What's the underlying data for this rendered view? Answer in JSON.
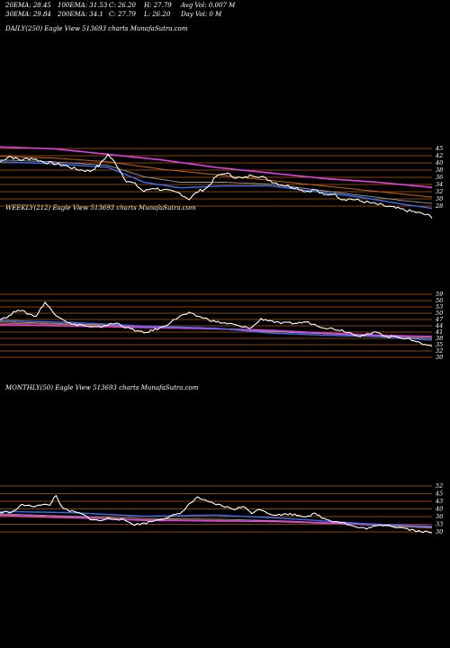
{
  "header": {
    "r1c1": "20EMA: 28.45",
    "r1c2": "100EMA: 31.53",
    "r1c3": "C: 26.20",
    "r1c4": "H: 27.79",
    "r1c5": "Avg Vol: 0.007 M",
    "r2c1": "30EMA: 29.84",
    "r2c2": "200EMA: 34.1",
    "r2c3": "C: 27.79",
    "r2c4": "L: 26.20",
    "r2c5": "Day Vol: 0  M"
  },
  "colors": {
    "background": "#000000",
    "price": "#ffffff",
    "ema_blue": "#3a6df0",
    "ema_pink": "#e040e0",
    "ema_orange": "#c86414",
    "ema_gray": "#9a9a9a",
    "level_line": "#b35a12"
  },
  "chart_data": [
    {
      "type": "line",
      "title": "DAILY(250) Eagle  View  513693 charts MunafaSutra.com",
      "ylim": [
        24,
        47
      ],
      "y_ticks": [
        "45",
        "42",
        "40",
        "38",
        "36",
        "34",
        "32",
        "30",
        "28"
      ],
      "level_lines": [
        45,
        42,
        40,
        38,
        36,
        34,
        32,
        30,
        28
      ],
      "series": [
        {
          "role": "price",
          "points_count": 250,
          "keypoints": [
            [
              0,
              41
            ],
            [
              10,
              42.5
            ],
            [
              22,
              41.5
            ],
            [
              35,
              42
            ],
            [
              48,
              41
            ],
            [
              60,
              40.5
            ],
            [
              72,
              40
            ],
            [
              85,
              39
            ],
            [
              100,
              38.5
            ],
            [
              110,
              40
            ],
            [
              120,
              43
            ],
            [
              130,
              40
            ],
            [
              140,
              36
            ],
            [
              150,
              35
            ],
            [
              160,
              33
            ],
            [
              170,
              34
            ],
            [
              180,
              33.5
            ],
            [
              190,
              33
            ],
            [
              200,
              32.5
            ],
            [
              210,
              31
            ],
            [
              220,
              33
            ],
            [
              230,
              34
            ],
            [
              240,
              37
            ],
            [
              250,
              38
            ],
            [
              260,
              37
            ],
            [
              270,
              36.5
            ],
            [
              280,
              37.5
            ],
            [
              290,
              37
            ],
            [
              300,
              36
            ],
            [
              310,
              35
            ],
            [
              320,
              34.5
            ],
            [
              330,
              34
            ],
            [
              340,
              33
            ],
            [
              350,
              33.5
            ],
            [
              360,
              32
            ],
            [
              370,
              32.5
            ],
            [
              380,
              31
            ],
            [
              390,
              31
            ],
            [
              400,
              30.5
            ],
            [
              410,
              30
            ],
            [
              420,
              29.5
            ],
            [
              430,
              29
            ],
            [
              440,
              28.5
            ],
            [
              450,
              28
            ],
            [
              460,
              27.5
            ],
            [
              470,
              27
            ],
            [
              480,
              26.2
            ]
          ]
        },
        {
          "role": "ema_blue",
          "keypoints": [
            [
              0,
              41
            ],
            [
              60,
              40.5
            ],
            [
              120,
              39.5
            ],
            [
              160,
              35.5
            ],
            [
              200,
              34
            ],
            [
              250,
              34.5
            ],
            [
              300,
              34.5
            ],
            [
              350,
              33
            ],
            [
              400,
              31.5
            ],
            [
              450,
              29.5
            ],
            [
              480,
              28.5
            ]
          ]
        },
        {
          "role": "ema_gray",
          "keypoints": [
            [
              0,
              41.5
            ],
            [
              60,
              41
            ],
            [
              120,
              40
            ],
            [
              160,
              37
            ],
            [
              200,
              35.5
            ],
            [
              250,
              35.5
            ],
            [
              300,
              35
            ],
            [
              350,
              33.5
            ],
            [
              400,
              32
            ],
            [
              450,
              30.5
            ],
            [
              480,
              29.8
            ]
          ]
        },
        {
          "role": "ema_orange",
          "keypoints": [
            [
              0,
              42.5
            ],
            [
              60,
              42
            ],
            [
              120,
              41
            ],
            [
              180,
              39
            ],
            [
              240,
              37.5
            ],
            [
              300,
              36
            ],
            [
              360,
              34.5
            ],
            [
              420,
              33
            ],
            [
              480,
              31.5
            ]
          ]
        },
        {
          "role": "ema_pink",
          "keypoints": [
            [
              0,
              45
            ],
            [
              60,
              44.5
            ],
            [
              120,
              43
            ],
            [
              180,
              41.5
            ],
            [
              240,
              39.5
            ],
            [
              300,
              38
            ],
            [
              360,
              36.5
            ],
            [
              420,
              35.5
            ],
            [
              480,
              34.1
            ]
          ]
        }
      ]
    },
    {
      "type": "line",
      "title": "WEEKLY(212) Eagle  View  513693 charts MunafaSutra.com",
      "ylim": [
        24,
        70
      ],
      "y_ticks": [
        "59",
        "56",
        "53",
        "50",
        "47",
        "44",
        "41",
        "38",
        "35",
        "32",
        "30"
      ],
      "level_lines": [
        59,
        56,
        53,
        50,
        47,
        44,
        41,
        38,
        35,
        32,
        30
      ],
      "series": [
        {
          "role": "price",
          "points_count": 212,
          "keypoints": [
            [
              0,
              48
            ],
            [
              10,
              50
            ],
            [
              20,
              55
            ],
            [
              30,
              52
            ],
            [
              40,
              50
            ],
            [
              50,
              60
            ],
            [
              60,
              52
            ],
            [
              70,
              48
            ],
            [
              80,
              44
            ],
            [
              90,
              44
            ],
            [
              100,
              42
            ],
            [
              110,
              42
            ],
            [
              120,
              44
            ],
            [
              130,
              45
            ],
            [
              140,
              42
            ],
            [
              150,
              40
            ],
            [
              160,
              38
            ],
            [
              170,
              40
            ],
            [
              180,
              42
            ],
            [
              190,
              46
            ],
            [
              200,
              50
            ],
            [
              210,
              52
            ],
            [
              220,
              50
            ],
            [
              230,
              48
            ],
            [
              240,
              46
            ],
            [
              250,
              45
            ],
            [
              260,
              44
            ],
            [
              270,
              42
            ],
            [
              280,
              42
            ],
            [
              290,
              48
            ],
            [
              300,
              47
            ],
            [
              310,
              45
            ],
            [
              320,
              45
            ],
            [
              330,
              45
            ],
            [
              340,
              46
            ],
            [
              350,
              44
            ],
            [
              360,
              42
            ],
            [
              370,
              41
            ],
            [
              380,
              40
            ],
            [
              390,
              38
            ],
            [
              400,
              36
            ],
            [
              410,
              37
            ],
            [
              420,
              39
            ],
            [
              430,
              35
            ],
            [
              440,
              36
            ],
            [
              450,
              34
            ],
            [
              460,
              33
            ],
            [
              470,
              30
            ],
            [
              480,
              29
            ]
          ]
        },
        {
          "role": "ema_blue",
          "keypoints": [
            [
              0,
              47
            ],
            [
              80,
              45.5
            ],
            [
              160,
              43
            ],
            [
              240,
              41.5
            ],
            [
              300,
              38
            ],
            [
              360,
              36.5
            ],
            [
              420,
              35.5
            ],
            [
              480,
              33
            ]
          ]
        },
        {
          "role": "ema_gray",
          "keypoints": [
            [
              0,
              46
            ],
            [
              80,
              44.5
            ],
            [
              160,
              43
            ],
            [
              240,
              41
            ],
            [
              300,
              39
            ],
            [
              360,
              37.5
            ],
            [
              420,
              36
            ],
            [
              480,
              34
            ]
          ]
        },
        {
          "role": "ema_orange",
          "keypoints": [
            [
              0,
              45
            ],
            [
              80,
              44
            ],
            [
              160,
              42.5
            ],
            [
              240,
              41
            ],
            [
              300,
              39.5
            ],
            [
              360,
              38
            ],
            [
              420,
              36.5
            ],
            [
              480,
              35
            ]
          ]
        },
        {
          "role": "ema_pink",
          "keypoints": [
            [
              0,
              44
            ],
            [
              80,
              43
            ],
            [
              160,
              42
            ],
            [
              240,
              41
            ],
            [
              300,
              40
            ],
            [
              360,
              38
            ],
            [
              420,
              36.5
            ],
            [
              480,
              35.5
            ]
          ]
        }
      ]
    },
    {
      "type": "line",
      "title": "MONTHLY(50) Eagle  View  513693 charts MunafaSutra.com",
      "ylim": [
        22,
        75
      ],
      "y_ticks": [
        "52",
        "45",
        "43",
        "40",
        "36",
        "33",
        "30"
      ],
      "level_lines": [
        52,
        45,
        43,
        40,
        36,
        33,
        30
      ],
      "series": [
        {
          "role": "price",
          "points_count": 50,
          "keypoints": [
            [
              0,
              45
            ],
            [
              15,
              46
            ],
            [
              25,
              52
            ],
            [
              35,
              50
            ],
            [
              45,
              52
            ],
            [
              55,
              51
            ],
            [
              62,
              60
            ],
            [
              70,
              48
            ],
            [
              80,
              46
            ],
            [
              90,
              44
            ],
            [
              100,
              40
            ],
            [
              110,
              38
            ],
            [
              120,
              40
            ],
            [
              130,
              40
            ],
            [
              140,
              38
            ],
            [
              150,
              35
            ],
            [
              160,
              36
            ],
            [
              170,
              38
            ],
            [
              180,
              40
            ],
            [
              190,
              42
            ],
            [
              200,
              44
            ],
            [
              210,
              52
            ],
            [
              220,
              58
            ],
            [
              230,
              54
            ],
            [
              240,
              52
            ],
            [
              250,
              50
            ],
            [
              260,
              48
            ],
            [
              270,
              50
            ],
            [
              280,
              45
            ],
            [
              290,
              48
            ],
            [
              300,
              44
            ],
            [
              310,
              43
            ],
            [
              320,
              44
            ],
            [
              330,
              43
            ],
            [
              340,
              42
            ],
            [
              350,
              44
            ],
            [
              360,
              40
            ],
            [
              370,
              38
            ],
            [
              380,
              37
            ],
            [
              390,
              34
            ],
            [
              400,
              32
            ],
            [
              410,
              32
            ],
            [
              420,
              34
            ],
            [
              430,
              35
            ],
            [
              440,
              33
            ],
            [
              450,
              32
            ],
            [
              460,
              30
            ],
            [
              470,
              29
            ],
            [
              480,
              28
            ]
          ]
        },
        {
          "role": "ema_blue",
          "keypoints": [
            [
              0,
              46
            ],
            [
              80,
              45
            ],
            [
              160,
              42
            ],
            [
              240,
              43
            ],
            [
              320,
              40
            ],
            [
              400,
              36
            ],
            [
              480,
              33
            ]
          ]
        },
        {
          "role": "ema_gray",
          "keypoints": [
            [
              0,
              44
            ],
            [
              80,
              42
            ],
            [
              160,
              40
            ],
            [
              240,
              39.5
            ],
            [
              320,
              38
            ],
            [
              400,
              35
            ],
            [
              480,
              32.5
            ]
          ]
        },
        {
          "role": "ema_orange",
          "keypoints": [
            [
              0,
              42
            ],
            [
              80,
              40.5
            ],
            [
              160,
              39
            ],
            [
              240,
              38.5
            ],
            [
              320,
              37
            ],
            [
              400,
              35
            ],
            [
              480,
              32
            ]
          ]
        },
        {
          "role": "ema_pink",
          "keypoints": [
            [
              0,
              43
            ],
            [
              80,
              41
            ],
            [
              160,
              38.5
            ],
            [
              240,
              38
            ],
            [
              320,
              37.5
            ],
            [
              400,
              35.5
            ],
            [
              480,
              33.5
            ]
          ]
        }
      ]
    }
  ]
}
